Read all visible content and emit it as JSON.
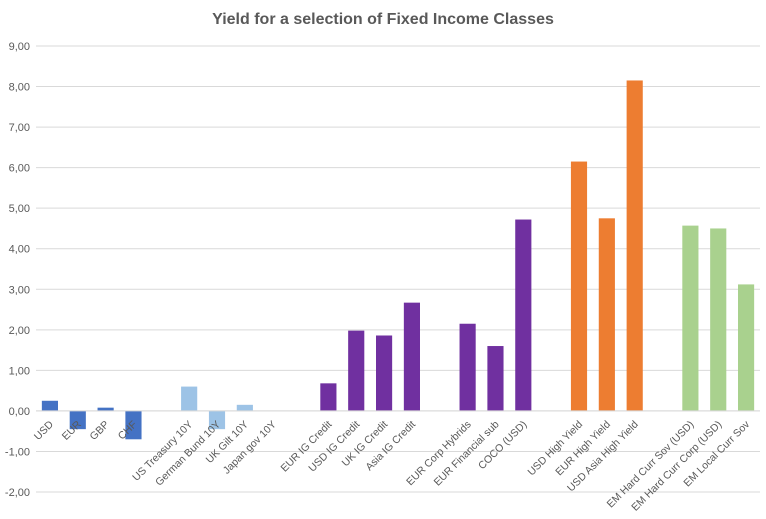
{
  "chart_data": {
    "type": "bar",
    "title": "Yield for a selection of Fixed Income Classes",
    "xlabel": "",
    "ylabel": "",
    "ylim": [
      -2,
      9
    ],
    "ytick_values": [
      -2,
      -1,
      0,
      1,
      2,
      3,
      4,
      5,
      6,
      7,
      8,
      9
    ],
    "ytick_labels": [
      "-2,00",
      "-1,00",
      "0,00",
      "1,00",
      "2,00",
      "3,00",
      "4,00",
      "5,00",
      "6,00",
      "7,00",
      "8,00",
      "9,00"
    ],
    "grid": true,
    "legend": "none",
    "categories": [
      "USD",
      "EUR",
      "GBP",
      "CHF",
      "",
      "US Treasury 10Y",
      "German Bund 10Y",
      "UK Gilt 10Y",
      "Japan gov 10Y",
      "",
      "EUR IG Credit",
      "USD IG Credit",
      "UK IG Credit",
      "Asia IG Credit",
      "",
      "EUR Corp Hybrids",
      "EUR Financial sub",
      "COCO (USD)",
      "",
      "USD High Yield",
      "EUR High Yield",
      "USD Asia High Yield",
      "",
      "EM Hard Curr Sov (USD)",
      "EM Hard Curr Corp (USD)",
      "EM Local Curr Sov"
    ],
    "values": [
      0.25,
      -0.45,
      0.08,
      -0.7,
      null,
      0.6,
      -0.45,
      0.15,
      0.0,
      null,
      0.68,
      1.98,
      1.86,
      2.67,
      null,
      2.15,
      1.6,
      4.72,
      null,
      6.15,
      4.75,
      8.15,
      null,
      4.57,
      4.5,
      3.12
    ],
    "colors": [
      "#4472c4",
      "#4472c4",
      "#4472c4",
      "#4472c4",
      "",
      "#9dc3e6",
      "#9dc3e6",
      "#9dc3e6",
      "#9dc3e6",
      "",
      "#7030a0",
      "#7030a0",
      "#7030a0",
      "#7030a0",
      "",
      "#7030a0",
      "#7030a0",
      "#7030a0",
      "",
      "#ed7d31",
      "#ed7d31",
      "#ed7d31",
      "",
      "#a9d18e",
      "#a9d18e",
      "#a9d18e"
    ]
  }
}
